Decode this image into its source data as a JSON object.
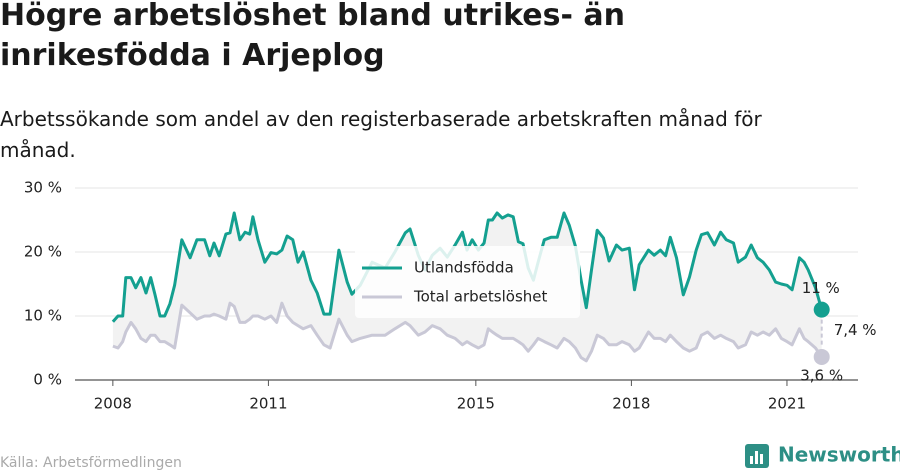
{
  "chart_data": {
    "type": "line",
    "title": "Högre arbetslöshet bland utrikes- än inrikesfödda i Arjeplog",
    "subtitle": "Arbetssökande som andel av den registerbaserade arbetskraften månad för månad.",
    "source": "Källa: Arbetsförmedlingen",
    "logo": "Newsworthy",
    "annotations": [
      "11 %",
      "7,4 %",
      "3,6 %"
    ],
    "xlim": [
      2007.27,
      2022.37
    ],
    "xticks": [
      2008,
      2011,
      2015,
      2018,
      2021
    ],
    "ylim": [
      0,
      30
    ],
    "yticks": [
      {
        "value": 0,
        "label": "0 %"
      },
      {
        "value": 10,
        "label": "10 %"
      },
      {
        "value": 20,
        "label": "20 %"
      },
      {
        "value": 30,
        "label": "30 %"
      }
    ],
    "grid": true,
    "legend": "center",
    "x": [
      2008.0,
      2008.1,
      2008.19,
      2008.25,
      2008.35,
      2008.44,
      2008.54,
      2008.64,
      2008.73,
      2008.81,
      2008.91,
      2009.0,
      2009.1,
      2009.19,
      2009.33,
      2009.49,
      2009.62,
      2009.77,
      2009.87,
      2009.95,
      2010.05,
      2010.18,
      2010.26,
      2010.34,
      2010.45,
      2010.55,
      2010.64,
      2010.7,
      2010.8,
      2010.93,
      2011.05,
      2011.16,
      2011.26,
      2011.36,
      2011.47,
      2011.57,
      2011.67,
      2011.82,
      2011.94,
      2012.07,
      2012.19,
      2012.36,
      2012.52,
      2012.61,
      2012.77,
      2013.0,
      2013.25,
      2013.44,
      2013.64,
      2013.73,
      2013.89,
      2014.02,
      2014.16,
      2014.31,
      2014.45,
      2014.6,
      2014.74,
      2014.83,
      2014.93,
      2015.05,
      2015.16,
      2015.24,
      2015.32,
      2015.41,
      2015.51,
      2015.62,
      2015.72,
      2015.82,
      2015.91,
      2016.01,
      2016.11,
      2016.2,
      2016.32,
      2016.45,
      2016.57,
      2016.7,
      2016.8,
      2016.92,
      2017.03,
      2017.13,
      2017.23,
      2017.34,
      2017.46,
      2017.57,
      2017.71,
      2017.82,
      2017.96,
      2018.06,
      2018.15,
      2018.33,
      2018.44,
      2018.56,
      2018.66,
      2018.75,
      2018.87,
      2019.0,
      2019.12,
      2019.25,
      2019.35,
      2019.47,
      2019.6,
      2019.72,
      2019.83,
      2019.97,
      2020.06,
      2020.2,
      2020.31,
      2020.43,
      2020.54,
      2020.66,
      2020.78,
      2020.89,
      2021.0,
      2021.1,
      2021.24,
      2021.33,
      2021.41,
      2021.55,
      2021.67
    ],
    "series": [
      {
        "name": "Utlandsfödda",
        "color": "#14a090",
        "values": [
          9.1,
          10,
          10,
          16,
          16,
          14.4,
          16,
          13.6,
          16,
          13.4,
          10,
          10,
          11.9,
          14.8,
          21.9,
          19.1,
          21.9,
          21.9,
          19.4,
          21.4,
          19.4,
          22.8,
          23,
          26.1,
          21.9,
          23.1,
          22.8,
          25.5,
          21.9,
          18.4,
          19.9,
          19.7,
          20.3,
          22.5,
          21.9,
          18.4,
          20,
          15.6,
          13.6,
          10.3,
          10.3,
          20.3,
          15.3,
          13.4,
          14.8,
          18.4,
          17.5,
          20,
          23,
          23.6,
          19.5,
          17.2,
          19.5,
          20.6,
          19.2,
          21.1,
          23.1,
          20.3,
          21.9,
          20.3,
          21.4,
          25,
          25,
          26.1,
          25.3,
          25.8,
          25.5,
          21.6,
          21.3,
          17.5,
          15.6,
          18.4,
          21.9,
          22.3,
          22.3,
          26.1,
          24.2,
          20.9,
          15.6,
          11.3,
          17.2,
          23.4,
          22.2,
          18.6,
          21.1,
          20.3,
          20.6,
          14.1,
          18,
          20.3,
          19.5,
          20.3,
          19.4,
          22.3,
          19.1,
          13.3,
          16.1,
          20.3,
          22.7,
          23,
          21.1,
          23.1,
          21.9,
          21.4,
          18.4,
          19.2,
          21.1,
          19.1,
          18.4,
          17.2,
          15.3,
          15,
          14.8,
          14.1,
          19.1,
          18.4,
          17.2,
          14.4,
          11
        ]
      },
      {
        "name": "Total arbetslöshet",
        "color": "#c9c8d6",
        "values": [
          5.3,
          5,
          6,
          7.5,
          9,
          8,
          6.5,
          6,
          7,
          7,
          6,
          6,
          5.5,
          5,
          11.7,
          10.5,
          9.5,
          10,
          10,
          10.3,
          10,
          9.5,
          12,
          11.5,
          9,
          9,
          9.5,
          10,
          10,
          9.5,
          10,
          9,
          12,
          10,
          9,
          8.5,
          8,
          8.5,
          7,
          5.5,
          5,
          9.5,
          7,
          6,
          6.5,
          7,
          7,
          8,
          9,
          8.5,
          7,
          7.5,
          8.5,
          8,
          7,
          6.5,
          5.5,
          6,
          5.5,
          5,
          5.5,
          8,
          7.5,
          7,
          6.5,
          6.5,
          6.5,
          6,
          5.5,
          4.5,
          5.5,
          6.5,
          6,
          5.5,
          5,
          6.5,
          6,
          5,
          3.5,
          3,
          4.5,
          7,
          6.5,
          5.5,
          5.5,
          6,
          5.5,
          4.5,
          5,
          7.5,
          6.5,
          6.5,
          6,
          7,
          6,
          5,
          4.5,
          5,
          7,
          7.5,
          6.5,
          7,
          6.5,
          6,
          5,
          5.5,
          7.5,
          7,
          7.5,
          7,
          8,
          6.5,
          6,
          5.5,
          8,
          6.5,
          6,
          5,
          3.6
        ]
      }
    ]
  }
}
